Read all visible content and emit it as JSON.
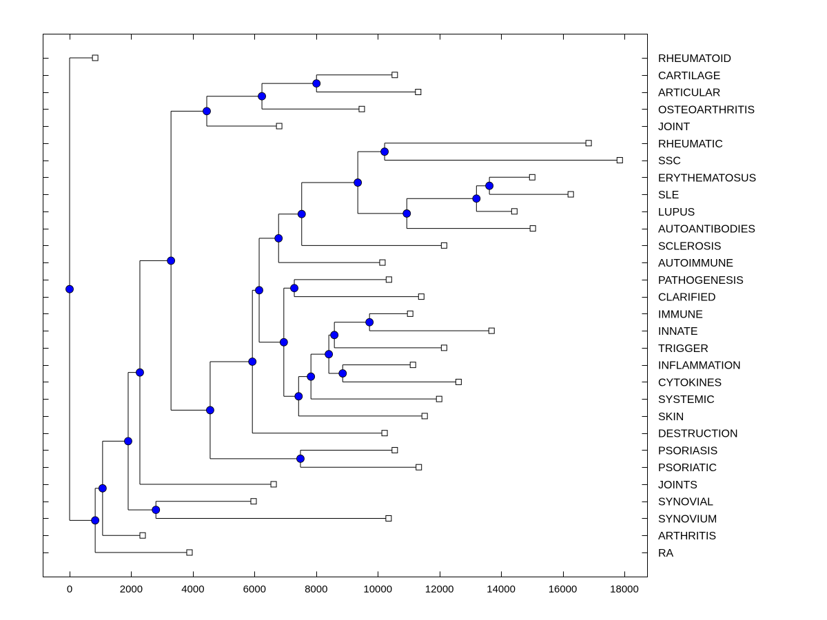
{
  "chart_data": {
    "type": "dendrogram",
    "title": "",
    "xlabel": "",
    "ylabel": "",
    "xlim": [
      -850,
      18900
    ],
    "xticks": [
      0,
      2000,
      4000,
      6000,
      8000,
      10000,
      12000,
      14000,
      16000,
      18000
    ],
    "grid": false,
    "leaves": [
      {
        "label": "RHEUMATOID",
        "value": 830
      },
      {
        "label": "CARTILAGE",
        "value": 10550
      },
      {
        "label": "ARTICULAR",
        "value": 11310
      },
      {
        "label": "OSTEOARTHRITIS",
        "value": 9480
      },
      {
        "label": "JOINT",
        "value": 6800
      },
      {
        "label": "RHEUMATIC",
        "value": 16840
      },
      {
        "label": "SSC",
        "value": 17850
      },
      {
        "label": "ERYTHEMATOSUS",
        "value": 15010
      },
      {
        "label": "SLE",
        "value": 16260
      },
      {
        "label": "LUPUS",
        "value": 14430
      },
      {
        "label": "AUTOANTIBODIES",
        "value": 15030
      },
      {
        "label": "SCLEROSIS",
        "value": 12150
      },
      {
        "label": "AUTOIMMUNE",
        "value": 10150
      },
      {
        "label": "PATHOGENESIS",
        "value": 10360
      },
      {
        "label": "CLARIFIED",
        "value": 11410
      },
      {
        "label": "IMMUNE",
        "value": 11050
      },
      {
        "label": "INNATE",
        "value": 13690
      },
      {
        "label": "TRIGGER",
        "value": 12150
      },
      {
        "label": "INFLAMMATION",
        "value": 11140
      },
      {
        "label": "CYTOKINES",
        "value": 12620
      },
      {
        "label": "SYSTEMIC",
        "value": 11990
      },
      {
        "label": "SKIN",
        "value": 11520
      },
      {
        "label": "DESTRUCTION",
        "value": 10220
      },
      {
        "label": "PSORIASIS",
        "value": 10550
      },
      {
        "label": "PSORIATIC",
        "value": 11330
      },
      {
        "label": "JOINTS",
        "value": 6620
      },
      {
        "label": "SYNOVIAL",
        "value": 5970
      },
      {
        "label": "SYNOVIUM",
        "value": 10350
      },
      {
        "label": "ARTHRITIS",
        "value": 2370
      },
      {
        "label": "RA",
        "value": 3890
      }
    ],
    "nodes": [
      {
        "id": "n_cart_art",
        "value": 8010,
        "children": [
          "L1",
          "L2"
        ]
      },
      {
        "id": "n_osteo",
        "value": 6240,
        "children": [
          "n_cart_art",
          "L3"
        ]
      },
      {
        "id": "n_joint",
        "value": 4450,
        "children": [
          "n_osteo",
          "L4"
        ]
      },
      {
        "id": "n_rheumatic_ssc",
        "value": 10220,
        "children": [
          "L5",
          "L6"
        ]
      },
      {
        "id": "n_ery_sle",
        "value": 13620,
        "children": [
          "L7",
          "L8"
        ]
      },
      {
        "id": "n_lupus",
        "value": 13200,
        "children": [
          "n_ery_sle",
          "L9"
        ]
      },
      {
        "id": "n_autoab",
        "value": 10940,
        "children": [
          "n_lupus",
          "L10"
        ]
      },
      {
        "id": "n_sle_group",
        "value": 9350,
        "children": [
          "n_rheumatic_ssc",
          "n_autoab"
        ]
      },
      {
        "id": "n_sclerosis",
        "value": 7530,
        "children": [
          "n_sle_group",
          "L11"
        ]
      },
      {
        "id": "n_autoimmune",
        "value": 6780,
        "children": [
          "n_sclerosis",
          "L12"
        ]
      },
      {
        "id": "n_path_clar",
        "value": 7290,
        "children": [
          "L13",
          "L14"
        ]
      },
      {
        "id": "n_imm_innate",
        "value": 9730,
        "children": [
          "L15",
          "L16"
        ]
      },
      {
        "id": "n_trigger",
        "value": 8590,
        "children": [
          "n_imm_innate",
          "L17"
        ]
      },
      {
        "id": "n_inf_cyt",
        "value": 8860,
        "children": [
          "L18",
          "L19"
        ]
      },
      {
        "id": "n_inflam_group",
        "value": 8410,
        "children": [
          "n_trigger",
          "n_inf_cyt"
        ]
      },
      {
        "id": "n_systemic",
        "value": 7830,
        "children": [
          "n_inflam_group",
          "L20"
        ]
      },
      {
        "id": "n_skin",
        "value": 7430,
        "children": [
          "n_systemic",
          "L21"
        ]
      },
      {
        "id": "n_path_group",
        "value": 6950,
        "children": [
          "n_path_clar",
          "n_skin"
        ]
      },
      {
        "id": "n_immune_all",
        "value": 6150,
        "children": [
          "n_autoimmune",
          "n_path_group"
        ]
      },
      {
        "id": "n_destruction",
        "value": 5930,
        "children": [
          "n_immune_all",
          "L22"
        ]
      },
      {
        "id": "n_psor",
        "value": 7490,
        "children": [
          "L23",
          "L24"
        ]
      },
      {
        "id": "n_psor_group",
        "value": 4560,
        "children": [
          "n_destruction",
          "n_psor"
        ]
      },
      {
        "id": "n_upper",
        "value": 3290,
        "children": [
          "n_joint",
          "n_psor_group"
        ]
      },
      {
        "id": "n_joints",
        "value": 2280,
        "children": [
          "n_upper",
          "L25"
        ]
      },
      {
        "id": "n_syn",
        "value": 2800,
        "children": [
          "L26",
          "L27"
        ]
      },
      {
        "id": "n_syn_group",
        "value": 1900,
        "children": [
          "n_joints",
          "n_syn"
        ]
      },
      {
        "id": "n_arthritis",
        "value": 1070,
        "children": [
          "n_syn_group",
          "L28"
        ]
      },
      {
        "id": "n_ra",
        "value": 830,
        "children": [
          "n_arthritis",
          "L29"
        ]
      },
      {
        "id": "n_root",
        "value": 0,
        "children": [
          "L0",
          "n_ra"
        ]
      }
    ],
    "colors": {
      "node": "#0000ff",
      "line": "#000000",
      "leaf": "#ffffff"
    }
  }
}
